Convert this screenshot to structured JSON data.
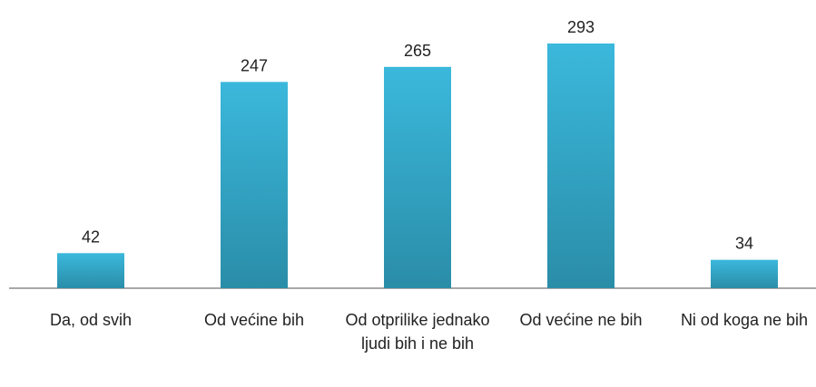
{
  "chart_data": {
    "type": "bar",
    "categories": [
      "Da, od svih",
      "Od većine bih",
      "Od otprilike jednako ljudi bih i ne bih",
      "Od većine ne bih",
      "Ni od koga ne bih"
    ],
    "values": [
      42,
      247,
      265,
      293,
      34
    ],
    "color": "#32a9c9"
  }
}
